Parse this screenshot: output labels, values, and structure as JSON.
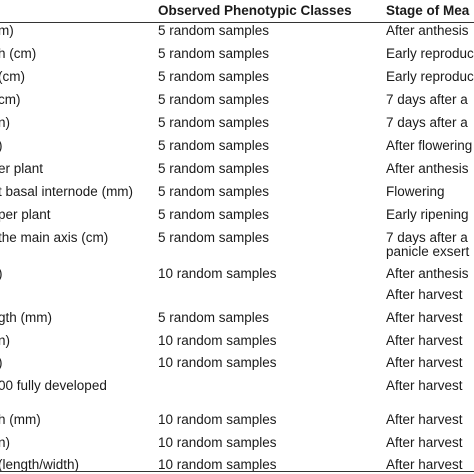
{
  "header": {
    "col1": "",
    "col2": "Observed Phenotypic Classes",
    "col3": "Stage of Mea"
  },
  "rows": [
    {
      "c1": "m)",
      "c2": "5 random samples",
      "c3": "After anthesis"
    },
    {
      "c1": "h (cm)",
      "c2": "5 random samples",
      "c3": "Early reproduc"
    },
    {
      "c1": "(cm)",
      "c2": "5 random samples",
      "c3": "Early reproduc"
    },
    {
      "c1": "cm)",
      "c2": "5 random samples",
      "c3": "7 days after a"
    },
    {
      "c1": "n)",
      "c2": "5 random samples",
      "c3": "7 days after a"
    },
    {
      "c1": ")",
      "c2": "5 random samples",
      "c3": "After flowering"
    },
    {
      "c1": "er plant",
      "c2": "5 random samples",
      "c3": "After anthesis"
    },
    {
      "c1": "t basal internode (mm)",
      "c2": "5 random samples",
      "c3": "Flowering"
    },
    {
      "c1": "per plant",
      "c2": "5 random samples",
      "c3": "Early ripening"
    },
    {
      "c1": "the main axis (cm)",
      "c2": "5 random samples",
      "c3": "7 days after a",
      "c3b": "panicle exsert"
    },
    {
      "c1": ")",
      "c2": "10 random samples",
      "c3": "After anthesis"
    },
    {
      "c1": "",
      "c2": "",
      "c3": "After harvest"
    },
    {
      "c1": "gth (mm)",
      "c2": "5 random samples",
      "c3": "After harvest"
    },
    {
      "c1": "n)",
      "c2": "10 random samples",
      "c3": "After harvest"
    },
    {
      "c1": ")",
      "c2": "10 random samples",
      "c3": "After harvest"
    },
    {
      "c1": "00 fully developed",
      "c2": "",
      "c3": "After harvest"
    },
    {
      "c1": "h (mm)",
      "c2": "10 random samples",
      "c3": "After harvest"
    },
    {
      "c1": "n)",
      "c2": "10 random samples",
      "c3": "After harvest"
    },
    {
      "c1": "(length/width)",
      "c2": "10 random samples",
      "c3": "After harvest"
    }
  ]
}
